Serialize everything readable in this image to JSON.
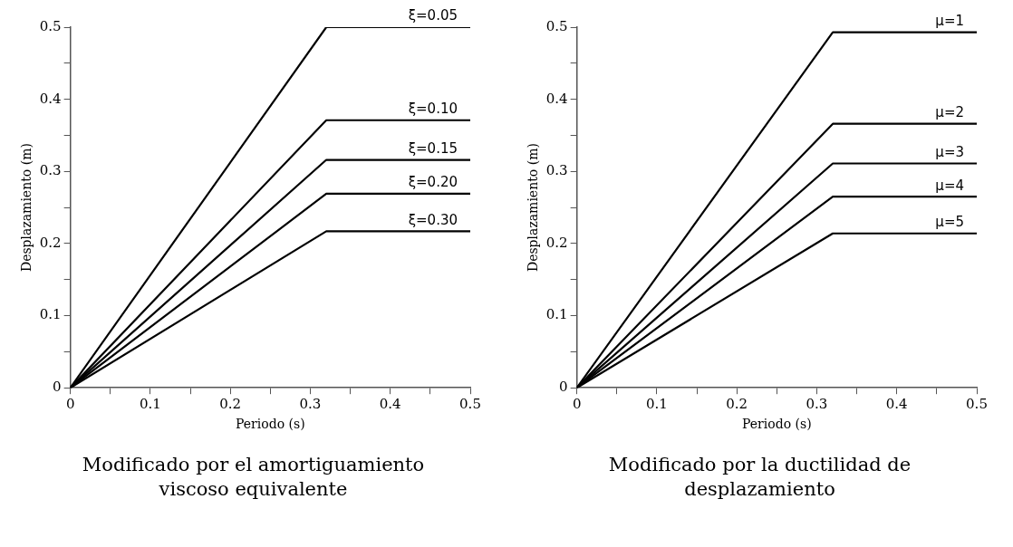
{
  "chart_data": [
    {
      "type": "line",
      "title": "Modificado por el amortiguamiento viscoso equivalente",
      "xlabel": "Periodo (s)",
      "ylabel": "Desplazamiento (m)",
      "xlim": [
        0,
        0.5
      ],
      "ylim": [
        0,
        0.5
      ],
      "xticks": [
        0,
        {
          "value": 0.05,
          "label": null
        },
        0.1,
        {
          "value": 0.15,
          "label": null
        },
        0.2,
        {
          "value": 0.25,
          "label": null
        },
        0.3,
        {
          "value": 0.35,
          "label": null
        },
        0.4,
        {
          "value": 0.45,
          "label": null
        },
        0.5
      ],
      "yticks": [
        0,
        {
          "value": 0.05,
          "label": null
        },
        0.1,
        {
          "value": 0.15,
          "label": null
        },
        0.2,
        {
          "value": 0.25,
          "label": null
        },
        0.3,
        {
          "value": 0.35,
          "label": null
        },
        0.4,
        {
          "value": 0.45,
          "label": null
        },
        0.5
      ],
      "grid": false,
      "legend": false,
      "marker": "none",
      "line_style": "solid",
      "series": [
        {
          "name": "ξ=0.05",
          "color": "#000000",
          "x": [
            0,
            0.32,
            0.5
          ],
          "values": [
            0,
            0.5,
            0.5
          ]
        },
        {
          "name": "ξ=0.10",
          "color": "#000000",
          "x": [
            0,
            0.32,
            0.5
          ],
          "values": [
            0,
            0.371,
            0.371
          ]
        },
        {
          "name": "ξ=0.15",
          "color": "#000000",
          "x": [
            0,
            0.32,
            0.5
          ],
          "values": [
            0,
            0.316,
            0.316
          ]
        },
        {
          "name": "ξ=0.20",
          "color": "#000000",
          "x": [
            0,
            0.32,
            0.5
          ],
          "values": [
            0,
            0.269,
            0.269
          ]
        },
        {
          "name": "ξ=0.30",
          "color": "#000000",
          "x": [
            0,
            0.32,
            0.5
          ],
          "values": [
            0,
            0.217,
            0.217
          ]
        }
      ]
    },
    {
      "type": "line",
      "title": "Modificado por la ductilidad de desplazamiento",
      "xlabel": "Periodo (s)",
      "ylabel": "Desplazamiento (m)",
      "xlim": [
        0,
        0.5
      ],
      "ylim": [
        0,
        0.5
      ],
      "xticks": [
        0,
        {
          "value": 0.05,
          "label": null
        },
        0.1,
        {
          "value": 0.15,
          "label": null
        },
        0.2,
        {
          "value": 0.25,
          "label": null
        },
        0.3,
        {
          "value": 0.35,
          "label": null
        },
        0.4,
        {
          "value": 0.45,
          "label": null
        },
        0.5
      ],
      "yticks": [
        0,
        {
          "value": 0.05,
          "label": null
        },
        0.1,
        {
          "value": 0.15,
          "label": null
        },
        0.2,
        {
          "value": 0.25,
          "label": null
        },
        0.3,
        {
          "value": 0.35,
          "label": null
        },
        0.4,
        {
          "value": 0.45,
          "label": null
        },
        0.5
      ],
      "grid": false,
      "legend": false,
      "marker": "none",
      "line_style": "solid",
      "series": [
        {
          "name": "μ=1",
          "color": "#000000",
          "x": [
            0,
            0.32,
            0.5
          ],
          "values": [
            0,
            0.493,
            0.493
          ]
        },
        {
          "name": "μ=2",
          "color": "#000000",
          "x": [
            0,
            0.32,
            0.5
          ],
          "values": [
            0,
            0.366,
            0.366
          ]
        },
        {
          "name": "μ=3",
          "color": "#000000",
          "x": [
            0,
            0.32,
            0.5
          ],
          "values": [
            0,
            0.311,
            0.311
          ]
        },
        {
          "name": "μ=4",
          "color": "#000000",
          "x": [
            0,
            0.32,
            0.5
          ],
          "values": [
            0,
            0.265,
            0.265
          ]
        },
        {
          "name": "μ=5",
          "color": "#000000",
          "x": [
            0,
            0.32,
            0.5
          ],
          "values": [
            0,
            0.214,
            0.214
          ]
        }
      ]
    }
  ]
}
